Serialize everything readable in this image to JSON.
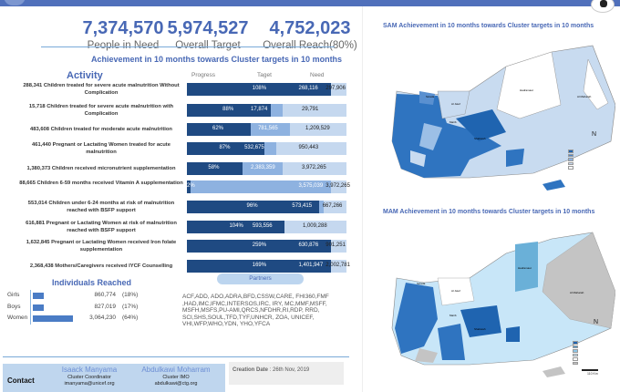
{
  "kpis": [
    {
      "value": "7,374,570",
      "label": "People in Need"
    },
    {
      "value": "5,974,527",
      "label": "Overall Target"
    },
    {
      "value": "4,752,023",
      "label": "Overall Reach(80%)"
    }
  ],
  "subtitle": "Achievement in 10 months towards Cluster targets in 10 months",
  "activity_header": "Activity",
  "columns": {
    "progress": "Progress",
    "target": "Taget",
    "need": "Need"
  },
  "activities": [
    {
      "label": "288,341 Children treated for severe acute malnutrition Without Complication",
      "reached": 288341,
      "progress": "108%",
      "target": "268,116",
      "need": "297,906",
      "target_n": 268116,
      "need_n": 297906
    },
    {
      "label": "15,718 Children treated for severe acute malnutrition with Complication",
      "reached": 15718,
      "progress": "88%",
      "target": "17,874",
      "need": "29,791",
      "target_n": 17874,
      "need_n": 29791
    },
    {
      "label": "483,608 Children treated for moderate acute malnutrition",
      "reached": 483608,
      "progress": "62%",
      "target": "781,565",
      "need": "1,209,529",
      "target_n": 781565,
      "need_n": 1209529
    },
    {
      "label": "461,440 Pregnant or Lactating Women treated for acute malnutrition",
      "reached": 461440,
      "progress": "87%",
      "target": "532,675",
      "need": "950,443",
      "target_n": 532675,
      "need_n": 950443
    },
    {
      "label": "1,380,373 Children received micronutrient supplementation",
      "reached": 1380373,
      "progress": "58%",
      "target": "2,383,359",
      "need": "3,972,265",
      "target_n": 2383359,
      "need_n": 3972265
    },
    {
      "label": "88,665 Children 6-59 months received Vitamin A supplementation",
      "reached": 88665,
      "progress": "2%",
      "target": "3,575,039",
      "need": "3,972,265",
      "target_n": 3575039,
      "need_n": 3972265
    },
    {
      "label": "553,014 Children under 6-24 months at risk of malnutrition reached with BSFP support",
      "reached": 553014,
      "progress": "96%",
      "target": "573,415",
      "need": "667,266",
      "target_n": 573415,
      "need_n": 667266
    },
    {
      "label": "616,881 Pregnant or Lactating Women at risk of malnutrition reached with BSFP support",
      "reached": 616881,
      "progress": "104%",
      "target": "593,556",
      "need": "1,009,288",
      "target_n": 593556,
      "need_n": 1009288
    },
    {
      "label": "1,632,845 Pregnant or Lactating Women received Iron folate supplementation",
      "reached": 1632845,
      "progress": "259%",
      "target": "630,876",
      "need": "901,251",
      "target_n": 630876,
      "need_n": 901251
    },
    {
      "label": "2,368,438 Mothers/Caregivers received IYCF Counselling",
      "reached": 2368438,
      "progress": "169%",
      "target": "1,401,947",
      "need": "2,002,781",
      "target_n": 1401947,
      "need_n": 2002781
    }
  ],
  "colors": {
    "dark": "#1f4a82",
    "target": "#8eb2e0",
    "need": "#c5d8ef",
    "accent": "#4868b5"
  },
  "individuals": {
    "title": "Individuals Reached",
    "items": [
      {
        "name": "Girls",
        "value": "860,774",
        "pct": "(18%)",
        "share": 18
      },
      {
        "name": "Boys",
        "value": "827,019",
        "pct": "(17%)",
        "share": 17
      },
      {
        "name": "Women",
        "value": "3,064,230",
        "pct": "(64%)",
        "share": 64
      }
    ]
  },
  "partners": {
    "title": "Partners",
    "list": "ACF,ADD, ADO,ADRA,BFD,CSSW,CARE, FHI360,FMF ,HAD,IMC,IFMC,INTERSOS,IRC, IRY, MC,MMF,MSFF, MSFH,MSFS,PU-AMI,QRCS,NFDHR,RI,RDP, RRD, SCI,SHS,SOUL,TFD,TYF,UNHCR, ZOA, UNICEF, VHI,WFP,WHO,YDN, YHO,YFCA"
  },
  "contact": {
    "label": "Contact",
    "people": [
      {
        "name": "Isaack Manyama",
        "role": "Cluster Coordinator",
        "email": "imanyama@unicef.org"
      },
      {
        "name": "Abdulkawi Moharram",
        "role": "Cluster IMO",
        "email": "abdulkawi@ctg.org"
      }
    ]
  },
  "creation": {
    "label": "Creation Date",
    "value": ": 26th Nov, 2019"
  },
  "maps": {
    "sam_title": "SAM Achievement in 10 months towards Cluster targets in 10 months",
    "mam_title": "MAM Achievement in 10 months towards Cluster targets in 10 months",
    "sam_places": [
      "Sa'ada",
      "Al Jawf",
      "Hadramaut",
      "Al Maharah",
      "Marib",
      "Shabwah"
    ],
    "mam_places": [
      "Sa'ada",
      "Al Jawf",
      "Hadramaut",
      "Al Maharah",
      "Marib",
      "Shabwah"
    ],
    "north": "N",
    "scale": "110 Km"
  }
}
